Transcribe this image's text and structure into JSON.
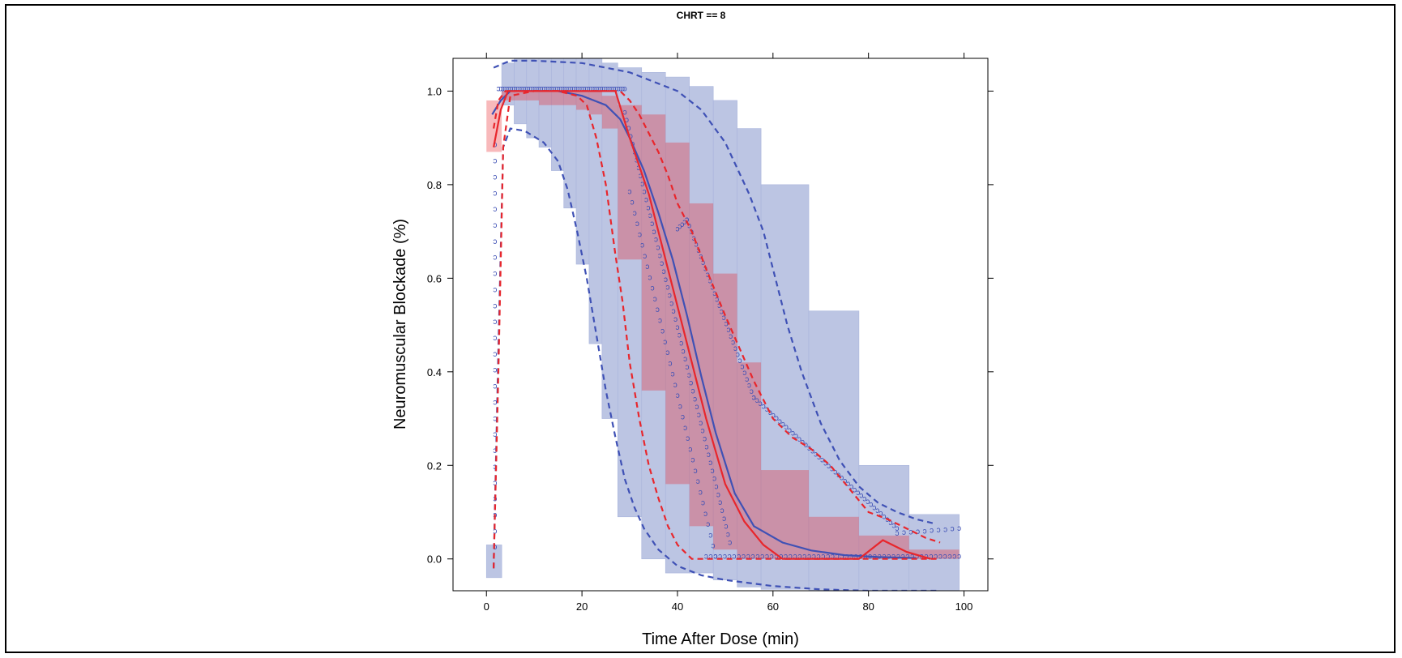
{
  "panel": {
    "title": "CHRT == 8"
  },
  "chart_data": {
    "type": "line",
    "title": "CHRT == 8",
    "xlabel": "Time After Dose (min)",
    "ylabel": "Neuromuscular Blockade (%)",
    "xlim": [
      -7,
      105
    ],
    "ylim": [
      -0.068,
      1.07
    ],
    "x_ticks": [
      0,
      20,
      40,
      60,
      80,
      100
    ],
    "y_ticks": [
      0.0,
      0.2,
      0.4,
      0.6,
      0.8,
      1.0
    ],
    "x_tick_labels": [
      "0",
      "20",
      "40",
      "60",
      "80",
      "100"
    ],
    "y_tick_labels": [
      "0.0",
      "0.2",
      "0.4",
      "0.6",
      "0.8",
      "1.0"
    ],
    "grid": false,
    "colors": {
      "simulated": "#3f51b5",
      "observed": "#e8262c",
      "simulated_band": "#bcc5e3",
      "observed_band": "#f7b3b7",
      "overlap_band": "#d897a8"
    },
    "bins": [
      [
        0,
        3.2
      ],
      [
        3.2,
        5.8
      ],
      [
        5.8,
        8.4
      ],
      [
        8.4,
        11
      ],
      [
        11,
        13.6
      ],
      [
        13.6,
        16.2
      ],
      [
        16.2,
        18.8
      ],
      [
        18.8,
        21.5
      ],
      [
        21.5,
        24.2
      ],
      [
        24.2,
        27.5
      ],
      [
        27.5,
        32.5
      ],
      [
        32.5,
        37.5
      ],
      [
        37.5,
        42.5
      ],
      [
        42.5,
        47.5
      ],
      [
        47.5,
        52.5
      ],
      [
        52.5,
        57.5
      ],
      [
        57.5,
        67.5
      ],
      [
        67.5,
        78
      ],
      [
        78,
        88.5
      ],
      [
        88.5,
        99
      ]
    ],
    "sim_median_ci": [
      [
        -0.04,
        0.03
      ],
      [
        0.97,
        1.06
      ],
      [
        0.93,
        1.07
      ],
      [
        0.9,
        1.07
      ],
      [
        0.88,
        1.07
      ],
      [
        0.83,
        1.07
      ],
      [
        0.75,
        1.07
      ],
      [
        0.63,
        1.07
      ],
      [
        0.46,
        1.07
      ],
      [
        0.3,
        1.06
      ],
      [
        0.09,
        1.05
      ],
      [
        0.0,
        1.04
      ],
      [
        -0.03,
        1.03
      ],
      [
        -0.03,
        1.01
      ],
      [
        -0.045,
        0.98
      ],
      [
        -0.06,
        0.92
      ],
      [
        -0.065,
        0.8
      ],
      [
        -0.068,
        0.53
      ],
      [
        -0.068,
        0.2
      ],
      [
        -0.068,
        0.095
      ]
    ],
    "obs_median_ci": [
      [
        0.87,
        0.98
      ],
      [
        0.98,
        1.0
      ],
      [
        0.98,
        1.0
      ],
      [
        0.98,
        1.0
      ],
      [
        0.97,
        1.0
      ],
      [
        0.97,
        1.0
      ],
      [
        0.97,
        1.0
      ],
      [
        0.96,
        1.0
      ],
      [
        0.95,
        1.0
      ],
      [
        0.92,
        0.99
      ],
      [
        0.64,
        0.97
      ],
      [
        0.36,
        0.95
      ],
      [
        0.16,
        0.89
      ],
      [
        0.07,
        0.76
      ],
      [
        0.02,
        0.61
      ],
      [
        0.0,
        0.42
      ],
      [
        0.0,
        0.19
      ],
      [
        0.0,
        0.09
      ],
      [
        0.0,
        0.05
      ],
      [
        0.0,
        0.02
      ]
    ],
    "series": [
      {
        "role": "sim_median",
        "style": "solid",
        "color": "#3f51b5",
        "x": [
          1.2,
          3,
          5,
          10,
          15,
          20,
          25,
          28,
          30,
          33,
          36,
          39,
          42,
          45,
          48,
          52,
          56,
          62,
          68,
          75,
          82,
          90
        ],
        "y": [
          0.95,
          0.98,
          1.0,
          1.0,
          1.0,
          0.99,
          0.97,
          0.94,
          0.9,
          0.83,
          0.74,
          0.64,
          0.52,
          0.39,
          0.27,
          0.14,
          0.07,
          0.035,
          0.018,
          0.008,
          0.004,
          0.002
        ]
      },
      {
        "role": "sim_p05",
        "style": "dashed",
        "color": "#3f51b5",
        "x": [
          1.5,
          2.5,
          3.5,
          5,
          8,
          12,
          15,
          17,
          19,
          21,
          23,
          25,
          27,
          29,
          31,
          33,
          36,
          40,
          45,
          50,
          60,
          70,
          80,
          90,
          95
        ],
        "y": [
          -0.02,
          0.45,
          0.88,
          0.92,
          0.915,
          0.89,
          0.85,
          0.79,
          0.7,
          0.6,
          0.48,
          0.36,
          0.26,
          0.17,
          0.11,
          0.065,
          0.02,
          -0.015,
          -0.035,
          -0.045,
          -0.058,
          -0.065,
          -0.068,
          -0.068,
          -0.068
        ]
      },
      {
        "role": "sim_p95",
        "style": "dashed",
        "color": "#3f51b5",
        "x": [
          1.5,
          5,
          10,
          20,
          30,
          40,
          45,
          50,
          55,
          58,
          60,
          63,
          66,
          70,
          74,
          78,
          82,
          86,
          90,
          94
        ],
        "y": [
          1.05,
          1.065,
          1.065,
          1.06,
          1.04,
          1.0,
          0.96,
          0.89,
          0.78,
          0.7,
          0.62,
          0.5,
          0.4,
          0.29,
          0.21,
          0.155,
          0.12,
          0.1,
          0.085,
          0.075
        ]
      },
      {
        "role": "obs_median",
        "style": "solid",
        "color": "#e8262c",
        "x": [
          1.5,
          3,
          4.5,
          8,
          12,
          16,
          20,
          24,
          27,
          30,
          34,
          38,
          42,
          46,
          50,
          54,
          58,
          62,
          70,
          78,
          83,
          88,
          93
        ],
        "y": [
          0.88,
          0.96,
          1.0,
          1.0,
          1.0,
          1.0,
          1.0,
          1.0,
          1.0,
          0.9,
          0.78,
          0.62,
          0.46,
          0.3,
          0.16,
          0.08,
          0.03,
          0.0,
          0.0,
          0.0,
          0.04,
          0.015,
          0.0
        ]
      },
      {
        "role": "obs_p05",
        "style": "dashed",
        "color": "#e8262c",
        "x": [
          1.5,
          2.5,
          3.5,
          5,
          10,
          15,
          19,
          21,
          23,
          25,
          27,
          28.5,
          30,
          32,
          34,
          36,
          38,
          40,
          43,
          46,
          50,
          60,
          80,
          95
        ],
        "y": [
          -0.02,
          0.4,
          0.88,
          0.99,
          1.0,
          1.0,
          0.99,
          0.97,
          0.9,
          0.8,
          0.65,
          0.55,
          0.42,
          0.3,
          0.2,
          0.13,
          0.07,
          0.03,
          0.0,
          0.0,
          0.0,
          0.0,
          0.0,
          0.0
        ]
      },
      {
        "role": "obs_p95",
        "style": "dashed",
        "color": "#e8262c",
        "x": [
          1.5,
          2.5,
          4,
          8,
          12,
          16,
          20,
          24,
          28,
          30,
          32,
          34,
          36,
          38,
          40,
          43,
          46,
          50,
          53,
          56,
          60,
          64,
          68,
          72,
          76,
          80,
          84,
          88,
          92,
          95
        ],
        "y": [
          0.92,
          0.98,
          1.0,
          1.0,
          1.0,
          1.0,
          1.0,
          1.0,
          1.0,
          0.98,
          0.95,
          0.91,
          0.87,
          0.82,
          0.76,
          0.7,
          0.62,
          0.52,
          0.45,
          0.38,
          0.3,
          0.26,
          0.235,
          0.2,
          0.15,
          0.1,
          0.085,
          0.065,
          0.045,
          0.035
        ]
      }
    ]
  }
}
